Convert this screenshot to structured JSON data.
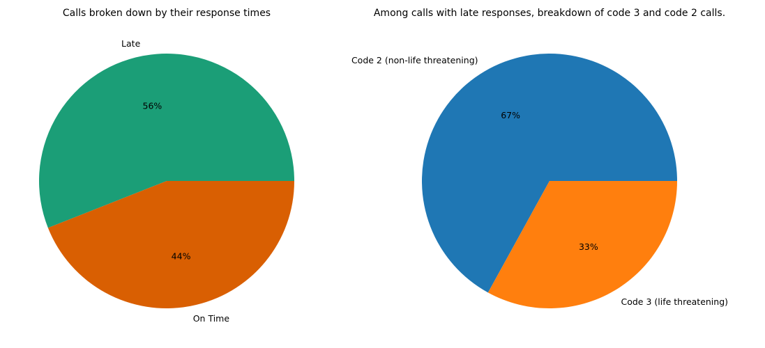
{
  "chart_data": [
    {
      "type": "pie",
      "title": "Calls broken down by their response times",
      "slices": [
        {
          "label": "Late",
          "value": 56,
          "pct_label": "56%",
          "color": "#1b9e77"
        },
        {
          "label": "On Time",
          "value": 44,
          "pct_label": "44%",
          "color": "#d95f02"
        }
      ],
      "start_angle_deg": 0,
      "direction": "counterclockwise"
    },
    {
      "type": "pie",
      "title": "Among calls with late responses, breakdown of code 3 and code 2 calls.",
      "slices": [
        {
          "label": "Code 2 (non-life threatening)",
          "value": 67,
          "pct_label": "67%",
          "color": "#1f77b4"
        },
        {
          "label": "Code 3 (life threatening)",
          "value": 33,
          "pct_label": "33%",
          "color": "#ff7f0e"
        }
      ],
      "start_angle_deg": 0,
      "direction": "counterclockwise"
    }
  ]
}
